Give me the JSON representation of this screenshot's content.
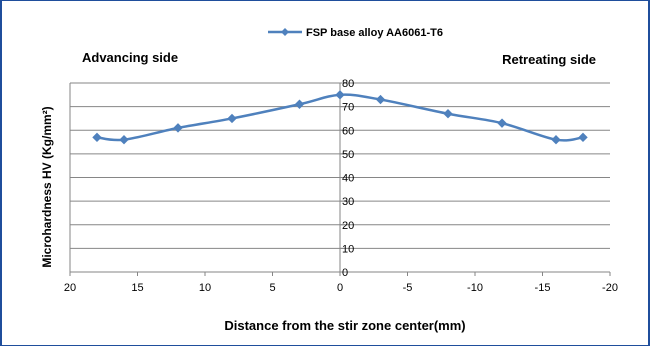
{
  "chart_data": {
    "type": "line",
    "title": "",
    "xlabel": "Distance from the stir zone center(mm)",
    "ylabel": "Microhardness HV (Kg/mm²)",
    "xlim": [
      20,
      -20
    ],
    "ylim": [
      0,
      80
    ],
    "x_reversed": true,
    "x_ticks": [
      "20",
      "15",
      "10",
      "5",
      "0",
      "-5",
      "-10",
      "-15",
      "-20"
    ],
    "y_ticks": [
      "0",
      "10",
      "20",
      "30",
      "40",
      "50",
      "60",
      "70",
      "80"
    ],
    "grid": "horizontal",
    "legend_position": "top",
    "series": [
      {
        "name": "FSP base alloy AA6061-T6",
        "color": "#4f81bd",
        "marker": "diamond",
        "x": [
          18,
          16,
          12,
          8,
          3,
          0,
          -3,
          -8,
          -12,
          -16,
          -18
        ],
        "y": [
          57,
          56,
          61,
          65,
          71,
          75,
          73,
          67,
          63,
          56,
          57
        ]
      }
    ],
    "annotations": {
      "left": "Advancing side",
      "right": "Retreating side"
    }
  }
}
